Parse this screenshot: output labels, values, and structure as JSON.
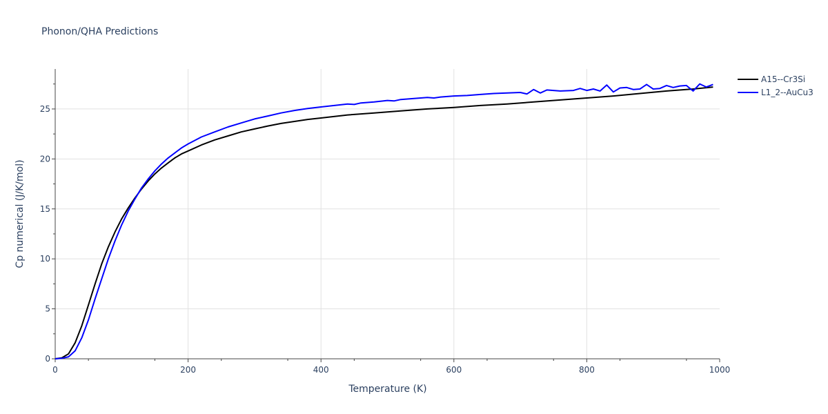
{
  "chart_data": {
    "type": "line",
    "title": "Phonon/QHA Predictions",
    "xlabel": "Temperature (K)",
    "ylabel": "Cp numerical (J/K/mol)",
    "xlim": [
      0,
      1000
    ],
    "ylim": [
      0,
      29
    ],
    "x_ticks": [
      "0",
      "200",
      "400",
      "600",
      "800",
      "1000"
    ],
    "y_ticks": [
      "0",
      "5",
      "10",
      "15",
      "20",
      "25"
    ],
    "grid": true,
    "legend_position": "top-right",
    "series": [
      {
        "name": "A15--Cr3Si",
        "color": "#000000",
        "x": [
          0,
          10,
          20,
          30,
          40,
          50,
          60,
          70,
          80,
          90,
          100,
          110,
          120,
          130,
          140,
          150,
          160,
          170,
          180,
          190,
          200,
          220,
          240,
          260,
          280,
          300,
          320,
          340,
          360,
          380,
          400,
          440,
          480,
          520,
          560,
          600,
          640,
          680,
          720,
          760,
          800,
          840,
          880,
          920,
          960,
          990
        ],
        "y": [
          0,
          0.1,
          0.5,
          1.6,
          3.3,
          5.4,
          7.5,
          9.5,
          11.2,
          12.7,
          14.0,
          15.1,
          16.1,
          17.0,
          17.8,
          18.5,
          19.1,
          19.6,
          20.1,
          20.5,
          20.8,
          21.4,
          21.9,
          22.3,
          22.7,
          23.0,
          23.3,
          23.55,
          23.75,
          23.95,
          24.1,
          24.4,
          24.6,
          24.8,
          25.0,
          25.15,
          25.35,
          25.5,
          25.7,
          25.9,
          26.1,
          26.3,
          26.55,
          26.8,
          27.0,
          27.2
        ]
      },
      {
        "name": "L1_2--AuCu3",
        "color": "#0000ff",
        "x": [
          0,
          10,
          20,
          30,
          40,
          50,
          60,
          70,
          80,
          90,
          100,
          110,
          120,
          130,
          140,
          150,
          160,
          170,
          180,
          190,
          200,
          220,
          240,
          260,
          280,
          300,
          320,
          340,
          360,
          380,
          400,
          420,
          440,
          450,
          460,
          480,
          500,
          510,
          520,
          540,
          560,
          570,
          580,
          600,
          620,
          640,
          660,
          680,
          700,
          710,
          720,
          730,
          740,
          760,
          780,
          790,
          800,
          810,
          820,
          830,
          840,
          850,
          860,
          870,
          880,
          890,
          900,
          910,
          920,
          930,
          940,
          950,
          960,
          970,
          980,
          990
        ],
        "y": [
          0,
          0.05,
          0.2,
          0.8,
          2.1,
          3.9,
          6.0,
          8.0,
          10.0,
          11.8,
          13.4,
          14.8,
          16.0,
          17.1,
          18.0,
          18.8,
          19.5,
          20.1,
          20.6,
          21.1,
          21.5,
          22.2,
          22.7,
          23.2,
          23.6,
          24.0,
          24.3,
          24.6,
          24.85,
          25.05,
          25.2,
          25.35,
          25.5,
          25.45,
          25.6,
          25.7,
          25.85,
          25.8,
          25.95,
          26.05,
          26.15,
          26.1,
          26.2,
          26.3,
          26.35,
          26.45,
          26.55,
          26.6,
          26.65,
          26.5,
          26.95,
          26.6,
          26.9,
          26.8,
          26.85,
          27.05,
          26.85,
          27.0,
          26.8,
          27.4,
          26.7,
          27.1,
          27.15,
          26.95,
          27.0,
          27.45,
          27.0,
          27.05,
          27.35,
          27.15,
          27.3,
          27.35,
          26.8,
          27.5,
          27.2,
          27.45
        ]
      }
    ]
  }
}
